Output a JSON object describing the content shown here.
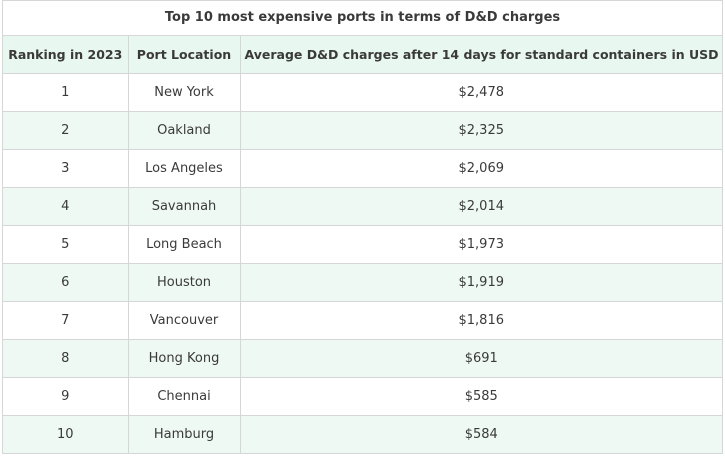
{
  "table": {
    "title": "Top 10 most expensive ports in terms of D&D charges",
    "headers": [
      "Ranking in 2023",
      "Port Location",
      "Average D&D charges after 14 days for standard containers in USD"
    ],
    "rows": [
      [
        "1",
        "New York",
        "$2,478"
      ],
      [
        "2",
        "Oakland",
        "$2,325"
      ],
      [
        "3",
        "Los Angeles",
        "$2,069"
      ],
      [
        "4",
        "Savannah",
        "$2,014"
      ],
      [
        "5",
        "Long Beach",
        "$1,973"
      ],
      [
        "6",
        "Houston",
        "$1,919"
      ],
      [
        "7",
        "Vancouver",
        "$1,816"
      ],
      [
        "8",
        "Hong Kong",
        "$691"
      ],
      [
        "9",
        "Chennai",
        "$585"
      ],
      [
        "10",
        "Hamburg",
        "$584"
      ]
    ],
    "colors": {
      "header_bg": "#e8f7ef",
      "stripe_bg": "#eef9f3",
      "border": "#d6d6d6",
      "text": "#3a3a3a"
    }
  }
}
